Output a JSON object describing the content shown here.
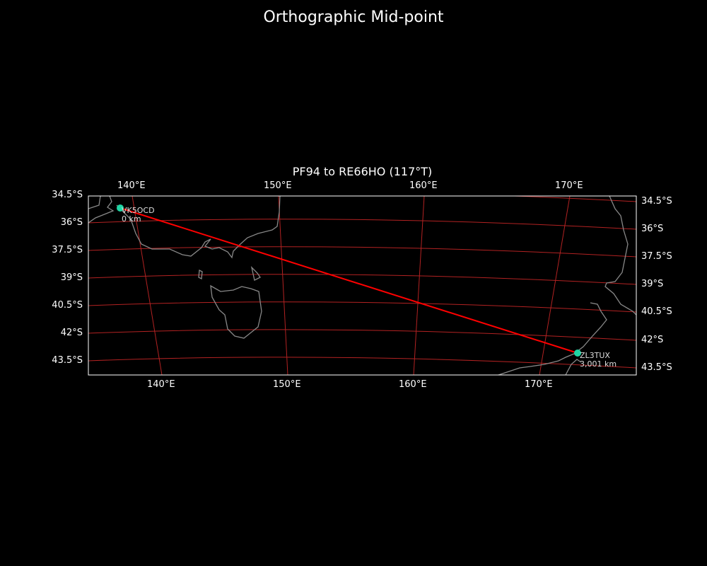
{
  "title": "Orthographic Mid-point",
  "subtitle": "PF94 to RE66HO (117°T)",
  "map": {
    "projection": "orthographic",
    "extent_lon": [
      134,
      177
    ],
    "extent_lat": [
      -34.5,
      -44.5
    ],
    "top_lon_ticks": [
      "140°E",
      "150°E",
      "160°E",
      "170°E"
    ],
    "bottom_lon_ticks": [
      "140°E",
      "150°E",
      "160°E",
      "170°E"
    ],
    "left_lat_ticks": [
      "34.5°S",
      "36°S",
      "37.5°S",
      "39°S",
      "40.5°S",
      "42°S",
      "43.5°S"
    ],
    "right_lat_ticks": [
      "34.5°S",
      "36°S",
      "37.5°S",
      "39°S",
      "40.5°S",
      "42°S",
      "43.5°S"
    ],
    "gridline_color": "#b22222",
    "coastline_color": "#888888",
    "path_color": "#ff0000",
    "marker_color": "#1fd6a4"
  },
  "stations": [
    {
      "call": "VK5OCD",
      "distance": "0 km"
    },
    {
      "call": "ZL3TUX",
      "distance": "3,001 km"
    }
  ]
}
